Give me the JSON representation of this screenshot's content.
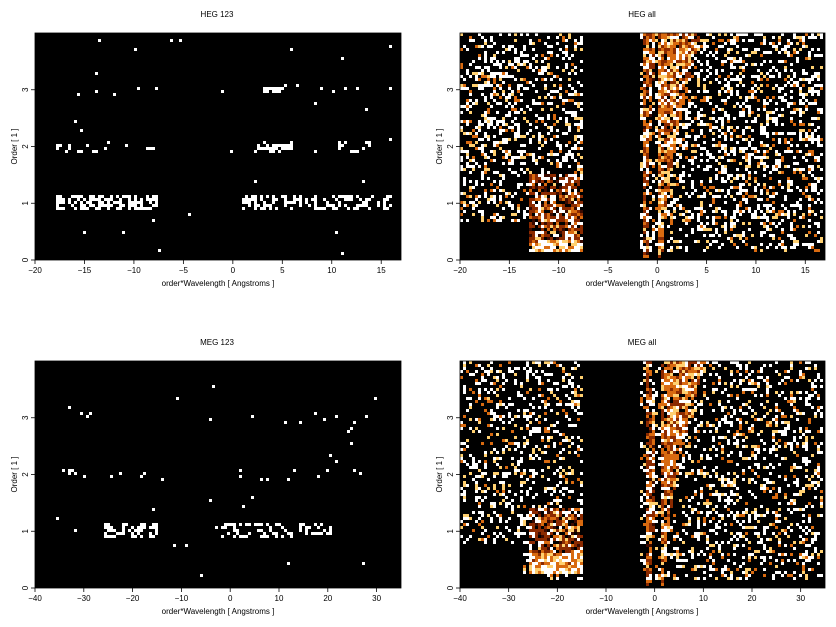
{
  "figure": {
    "panels": [
      {
        "id": "heg123",
        "title": "HEG 123",
        "xlabel": "order*Wavelength [ Angstroms ]",
        "ylabel": "Order [ 1 ]",
        "xlim": [
          -20,
          17
        ],
        "ylim": [
          0,
          4
        ],
        "xticks": [
          "−20",
          "−15",
          "−10",
          "−5",
          "0",
          "5",
          "10",
          "15"
        ],
        "xtick_values": [
          -20,
          -15,
          -10,
          -5,
          0,
          5,
          10,
          15
        ],
        "yticks": [
          "0",
          "1",
          "2",
          "3"
        ],
        "ytick_values": [
          0,
          1,
          2,
          3
        ]
      },
      {
        "id": "hegall",
        "title": "HEG all",
        "xlabel": "order*Wavelength [ Angstroms ]",
        "ylabel": "Order [ 1 ]",
        "xlim": [
          -20,
          17
        ],
        "ylim": [
          0,
          4
        ],
        "xticks": [
          "−20",
          "−15",
          "−10",
          "−5",
          "0",
          "5",
          "10",
          "15"
        ],
        "xtick_values": [
          -20,
          -15,
          -10,
          -5,
          0,
          5,
          10,
          15
        ],
        "yticks": [
          "0",
          "1",
          "2",
          "3"
        ],
        "ytick_values": [
          0,
          1,
          2,
          3
        ]
      },
      {
        "id": "meg123",
        "title": "MEG 123",
        "xlabel": "order*Wavelength [ Angstroms ]",
        "ylabel": "Order [ 1 ]",
        "xlim": [
          -40,
          35
        ],
        "ylim": [
          0,
          4
        ],
        "xticks": [
          "−40",
          "−30",
          "−20",
          "−10",
          "0",
          "10",
          "20",
          "30"
        ],
        "xtick_values": [
          -40,
          -30,
          -20,
          -10,
          0,
          10,
          20,
          30
        ],
        "yticks": [
          "0",
          "1",
          "2",
          "3"
        ],
        "ytick_values": [
          0,
          1,
          2,
          3
        ]
      },
      {
        "id": "megall",
        "title": "MEG all",
        "xlabel": "order*Wavelength [ Angstroms ]",
        "ylabel": "Order [ 1 ]",
        "xlim": [
          -40,
          35
        ],
        "ylim": [
          0,
          4
        ],
        "xticks": [
          "−40",
          "−30",
          "−20",
          "−10",
          "0",
          "10",
          "20",
          "30"
        ],
        "xtick_values": [
          -40,
          -30,
          -20,
          -10,
          0,
          10,
          20,
          30
        ],
        "yticks": [
          "0",
          "1",
          "2",
          "3"
        ],
        "ytick_values": [
          0,
          1,
          2,
          3
        ]
      }
    ]
  },
  "chart_data": [
    {
      "type": "heatmap",
      "title": "HEG 123",
      "xlabel": "order*Wavelength [ Angstroms ]",
      "ylabel": "Order [ 1 ]",
      "xlim": [
        -20,
        17
      ],
      "ylim": [
        0,
        4
      ],
      "colors": [
        "#000000",
        "#3a0a00",
        "#8b2a00",
        "#d86a10",
        "#ffd070",
        "#ffffff"
      ],
      "bands": [
        {
          "order": 1,
          "x": [
            -18,
            -7.5
          ],
          "density": 0.55,
          "intensity": 0.9
        },
        {
          "order": 1,
          "x": [
            1,
            16
          ],
          "density": 0.4,
          "intensity": 0.9
        },
        {
          "order": 2,
          "x": [
            -18,
            -7.5
          ],
          "density": 0.12,
          "intensity": 0.9
        },
        {
          "order": 2,
          "x": [
            2,
            14
          ],
          "density": 0.1,
          "intensity": 0.9
        },
        {
          "order": 3,
          "x": [
            -16,
            -9
          ],
          "density": 0.07,
          "intensity": 0.9
        },
        {
          "order": 3,
          "x": [
            3,
            14
          ],
          "density": 0.07,
          "intensity": 0.9
        }
      ],
      "blanks": [],
      "wedges": [],
      "scatter_density": 0.003,
      "hot_rows": [
        {
          "order": 2,
          "x": [
            2.5,
            6
          ],
          "intensity": 1.0
        },
        {
          "order": 3,
          "x": [
            3,
            5
          ],
          "intensity": 1.0
        }
      ]
    },
    {
      "type": "heatmap",
      "title": "HEG all",
      "xlabel": "order*Wavelength [ Angstroms ]",
      "ylabel": "Order [ 1 ]",
      "xlim": [
        -20,
        17
      ],
      "ylim": [
        0,
        4
      ],
      "colors": [
        "#000000",
        "#3a0a00",
        "#8b2a00",
        "#d86a10",
        "#ffd070",
        "#ffffff"
      ],
      "bands": [],
      "blanks": [
        {
          "x": [
            -7.4,
            -1.8
          ],
          "y": [
            0,
            4
          ]
        },
        {
          "x": [
            -20,
            -13
          ],
          "y": [
            0,
            0.65
          ]
        }
      ],
      "wedges": [
        {
          "x0": 0.1,
          "spread": [
            0.6,
            1.6
          ],
          "intensity": 0.55
        },
        {
          "x0": -1.3,
          "spread": [
            0,
            0.35
          ],
          "intensity": 0.45
        }
      ],
      "scatter_density": 0.33,
      "dense_regions": [
        {
          "x": [
            -13,
            -7.5
          ],
          "y": [
            0.3,
            1.5
          ],
          "density": 0.75,
          "intensity": 0.5
        },
        {
          "x": [
            -13,
            -7.5
          ],
          "y": [
            0.15,
            0.35
          ],
          "density": 0.95,
          "intensity": 0.95
        }
      ]
    },
    {
      "type": "heatmap",
      "title": "MEG 123",
      "xlabel": "order*Wavelength [ Angstroms ]",
      "ylabel": "Order [ 1 ]",
      "xlim": [
        -40,
        35
      ],
      "ylim": [
        0,
        4
      ],
      "colors": [
        "#000000",
        "#3a0a00",
        "#8b2a00",
        "#d86a10",
        "#ffd070",
        "#ffffff"
      ],
      "bands": [
        {
          "order": 1,
          "x": [
            -26,
            -15
          ],
          "density": 0.5,
          "intensity": 0.9
        },
        {
          "order": 1,
          "x": [
            -3,
            21
          ],
          "density": 0.35,
          "intensity": 0.9
        },
        {
          "order": 2,
          "x": [
            -36,
            -17
          ],
          "density": 0.05,
          "intensity": 0.9
        },
        {
          "order": 2,
          "x": [
            0,
            27
          ],
          "density": 0.05,
          "intensity": 0.9
        },
        {
          "order": 3,
          "x": [
            -34,
            -20
          ],
          "density": 0.05,
          "intensity": 0.9
        },
        {
          "order": 3,
          "x": [
            1,
            30
          ],
          "density": 0.05,
          "intensity": 0.9
        }
      ],
      "blanks": [],
      "wedges": [],
      "scatter_density": 0.003,
      "hot_rows": []
    },
    {
      "type": "heatmap",
      "title": "MEG all",
      "xlabel": "order*Wavelength [ Angstroms ]",
      "ylabel": "Order [ 1 ]",
      "xlim": [
        -40,
        35
      ],
      "ylim": [
        0,
        4
      ],
      "colors": [
        "#000000",
        "#3a0a00",
        "#8b2a00",
        "#d86a10",
        "#ffd070",
        "#ffffff"
      ],
      "bands": [],
      "blanks": [
        {
          "x": [
            -15,
            -3
          ],
          "y": [
            0,
            4
          ]
        },
        {
          "x": [
            -40,
            -27
          ],
          "y": [
            0,
            0.8
          ]
        }
      ],
      "wedges": [
        {
          "x0": 1,
          "spread": [
            1.2,
            3.5
          ],
          "intensity": 0.55
        },
        {
          "x0": -1.5,
          "spread": [
            1.2,
            0
          ],
          "intensity": 0.45
        }
      ],
      "scatter_density": 0.27,
      "dense_regions": [
        {
          "x": [
            -26,
            -15
          ],
          "y": [
            0.3,
            1.4
          ],
          "density": 0.75,
          "intensity": 0.5
        },
        {
          "x": [
            -26,
            -15
          ],
          "y": [
            0.25,
            0.6
          ],
          "density": 0.95,
          "intensity": 0.95
        }
      ]
    }
  ]
}
